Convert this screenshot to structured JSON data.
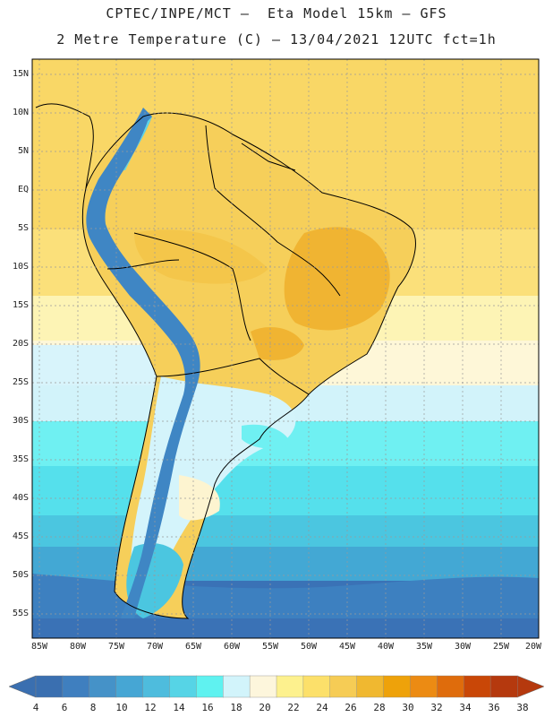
{
  "title": {
    "line1": "CPTEC/INPE/MCT –  Eta Model 15km – GFS",
    "line2": "2 Metre Temperature (C) – 13/04/2021 12UTC fct=1h"
  },
  "map": {
    "region": "South America",
    "lat_ticks": [
      "15N",
      "10N",
      "5N",
      "EQ",
      "5S",
      "10S",
      "15S",
      "20S",
      "25S",
      "30S",
      "35S",
      "40S",
      "45S",
      "50S",
      "55S"
    ],
    "lon_ticks": [
      "85W",
      "80W",
      "75W",
      "70W",
      "65W",
      "60W",
      "55W",
      "50W",
      "45W",
      "40W",
      "35W",
      "30W",
      "25W",
      "20W"
    ]
  },
  "colorbar": {
    "labels": [
      "4",
      "6",
      "8",
      "10",
      "12",
      "14",
      "16",
      "18",
      "20",
      "22",
      "24",
      "26",
      "28",
      "30",
      "32",
      "34",
      "36",
      "38"
    ],
    "colors": [
      "#3a6fb0",
      "#3f7fbf",
      "#4592c8",
      "#46a6d4",
      "#4ebcdd",
      "#56d4e6",
      "#5ff2f0",
      "#d2f4fb",
      "#fdf6dc",
      "#fdf18e",
      "#fce06a",
      "#f6cc55",
      "#f0b830",
      "#eea20a",
      "#ec8b13",
      "#df6c0c",
      "#c94707",
      "#b5390e"
    ]
  }
}
